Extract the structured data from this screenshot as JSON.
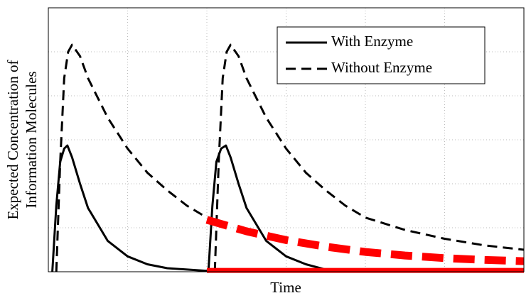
{
  "chart_data": {
    "type": "line",
    "x_label": "Time",
    "y_label": [
      "Expected Concentration of",
      "Information Molecules"
    ],
    "xlim": [
      0,
      6
    ],
    "ylim": [
      0,
      6
    ],
    "xticks": [
      0,
      1,
      2,
      3,
      4,
      5,
      6
    ],
    "yticks": [
      0,
      1,
      2,
      3,
      4,
      5,
      6
    ],
    "grid": true,
    "legend": "upper right",
    "series": [
      {
        "name": "With Enzyme",
        "color": "#000000",
        "dash": "solid",
        "width": 3,
        "x": [
          0.05,
          0.1,
          0.15,
          0.2,
          0.24,
          0.3,
          0.4,
          0.5,
          0.75,
          1.0,
          1.25,
          1.5,
          2.0,
          2.02,
          2.07,
          2.12,
          2.18,
          2.24,
          2.3,
          2.4,
          2.5,
          2.75,
          3.0,
          3.25,
          3.5
        ],
        "values": [
          0,
          1.5,
          2.5,
          2.8,
          2.87,
          2.6,
          2.0,
          1.45,
          0.7,
          0.35,
          0.17,
          0.08,
          0.02,
          0,
          1.5,
          2.5,
          2.8,
          2.87,
          2.6,
          2.0,
          1.45,
          0.7,
          0.35,
          0.17,
          0.05
        ]
      },
      {
        "name": "Without Enzyme",
        "color": "#000000",
        "dash": "dashed",
        "width": 3,
        "x": [
          0.1,
          0.15,
          0.2,
          0.25,
          0.3,
          0.4,
          0.5,
          0.75,
          1.0,
          1.25,
          1.5,
          1.75,
          2.0,
          2.05,
          2.1,
          2.15,
          2.2,
          2.25,
          2.3,
          2.4,
          2.5,
          2.75,
          3.0,
          3.25,
          3.5,
          3.75,
          4.0,
          4.5,
          5.0,
          5.5,
          6.0
        ],
        "values": [
          0,
          2.5,
          4.4,
          5.0,
          5.16,
          4.9,
          4.4,
          3.5,
          2.8,
          2.25,
          1.85,
          1.5,
          1.23,
          null,
          0,
          2.5,
          4.4,
          5.0,
          5.16,
          4.9,
          4.4,
          3.5,
          2.8,
          2.25,
          1.85,
          1.5,
          1.23,
          0.95,
          0.75,
          0.6,
          0.5
        ]
      },
      {
        "color": "#ff0000",
        "dash": "dashed",
        "width": 11,
        "x": [
          2.0,
          2.5,
          3.0,
          3.5,
          4.0,
          4.5,
          5.0,
          5.5,
          6.0
        ],
        "values": [
          1.18,
          0.92,
          0.72,
          0.57,
          0.45,
          0.37,
          0.31,
          0.27,
          0.24
        ]
      },
      {
        "color": "#ff0000",
        "dash": "solid",
        "width": 7,
        "x": [
          2.0,
          6.0
        ],
        "values": [
          0.03,
          0.03
        ]
      }
    ]
  }
}
